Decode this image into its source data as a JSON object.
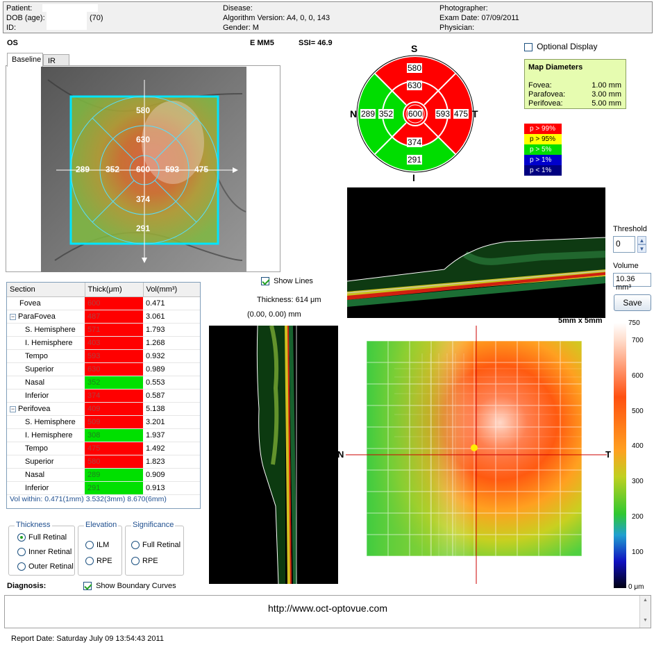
{
  "header": {
    "patient_label": "Patient:",
    "dob_label": "DOB (age):",
    "age": "(70)",
    "id_label": "ID:",
    "disease_label": "Disease:",
    "algorithm_version": "Algorithm Version: A4, 0, 0, 143",
    "gender": "Gender: M",
    "photographer_label": "Photographer:",
    "exam_date": "Exam Date: 07/09/2011",
    "physician_label": "Physician:"
  },
  "scan": {
    "eye": "OS",
    "protocol": "E MM5",
    "ssi": "SSI= 46.9"
  },
  "tabs": [
    "Baseline",
    "IR"
  ],
  "fundus_values": {
    "inner_top": "580",
    "mid_top": "630",
    "outer_left": "289",
    "mid_left": "352",
    "center": "600",
    "mid_right": "593",
    "outer_right": "475",
    "mid_bottom": "374",
    "outer_bottom": "291"
  },
  "grid_map": {
    "s": "S",
    "i": "I",
    "n": "N",
    "t": "T",
    "outer_top": "580",
    "inner_top": "630",
    "outer_left": "289",
    "inner_left": "352",
    "center": "600",
    "inner_right": "593",
    "outer_right": "475",
    "inner_bottom": "374",
    "outer_bottom": "291",
    "colors": {
      "red": "#ff0000",
      "green": "#00dd00"
    }
  },
  "optional_display": "Optional Display",
  "map_diameters": {
    "title": "Map Diameters",
    "rows": [
      {
        "label": "Fovea:",
        "value": "1.00 mm"
      },
      {
        "label": "Parafovea:",
        "value": "3.00 mm"
      },
      {
        "label": "Perifovea:",
        "value": "5.00 mm"
      }
    ]
  },
  "legend": [
    {
      "label": "p > 99%",
      "color": "#ff0000"
    },
    {
      "label": "p > 95%",
      "color": "#ffff00"
    },
    {
      "label": "p > 5%",
      "color": "#00dd00"
    },
    {
      "label": "p > 1%",
      "color": "#0000cc"
    },
    {
      "label": "p < 1%",
      "color": "#000080"
    }
  ],
  "controls": {
    "threshold_label": "Threshold",
    "threshold_value": "0",
    "volume_label": "Volume",
    "volume_value": "10.36 mm³",
    "save": "Save"
  },
  "show_lines": "Show Lines",
  "thickness_readout": "Thickness: 614 μm",
  "coord_readout": "(0.00, 0.00) mm",
  "map_size": "5mm x 5mm",
  "map_axis": {
    "n": "N",
    "t": "T"
  },
  "colorbar": {
    "ticks": [
      "750",
      "700",
      "600",
      "500",
      "400",
      "300",
      "200",
      "100",
      "0 μm"
    ]
  },
  "table": {
    "headers": [
      "Section",
      "Thick(μm)",
      "Vol(mm³)"
    ],
    "rows": [
      {
        "section": "Fovea",
        "thick": "600",
        "vol": "0.471",
        "color": "red"
      },
      {
        "section": "ParaFovea",
        "thick": "487",
        "vol": "3.061",
        "color": "red"
      },
      {
        "section": "S. Hemisphere",
        "thick": "571",
        "vol": "1.793",
        "color": "red"
      },
      {
        "section": "I. Hemisphere",
        "thick": "403",
        "vol": "1.268",
        "color": "red"
      },
      {
        "section": "Tempo",
        "thick": "593",
        "vol": "0.932",
        "color": "red"
      },
      {
        "section": "Superior",
        "thick": "630",
        "vol": "0.989",
        "color": "red"
      },
      {
        "section": "Nasal",
        "thick": "352",
        "vol": "0.553",
        "color": "green"
      },
      {
        "section": "Inferior",
        "thick": "374",
        "vol": "0.587",
        "color": "red"
      },
      {
        "section": "Perifovea",
        "thick": "409",
        "vol": "5.138",
        "color": "red"
      },
      {
        "section": "S. Hemisphere",
        "thick": "509",
        "vol": "3.201",
        "color": "red"
      },
      {
        "section": "I. Hemisphere",
        "thick": "308",
        "vol": "1.937",
        "color": "green"
      },
      {
        "section": "Tempo",
        "thick": "475",
        "vol": "1.492",
        "color": "red"
      },
      {
        "section": "Superior",
        "thick": "580",
        "vol": "1.823",
        "color": "red"
      },
      {
        "section": "Nasal",
        "thick": "289",
        "vol": "0.909",
        "color": "green"
      },
      {
        "section": "Inferior",
        "thick": "291",
        "vol": "0.913",
        "color": "green"
      }
    ],
    "vol_within": "Vol within: 0.471(1mm) 3.532(3mm) 8.670(6mm)"
  },
  "groups": {
    "thickness": {
      "title": "Thickness",
      "options": [
        "Full Retinal",
        "Inner Retinal",
        "Outer Retinal"
      ]
    },
    "elevation": {
      "title": "Elevation",
      "options": [
        "ILM",
        "RPE"
      ]
    },
    "significance": {
      "title": "Significance",
      "options": [
        "Full Retinal",
        "RPE"
      ]
    }
  },
  "diagnosis_label": "Diagnosis:",
  "show_boundary": "Show Boundary Curves",
  "url": "http://www.oct-optovue.com",
  "report_date": "Report Date: Saturday July 09 13:54:43 2011"
}
